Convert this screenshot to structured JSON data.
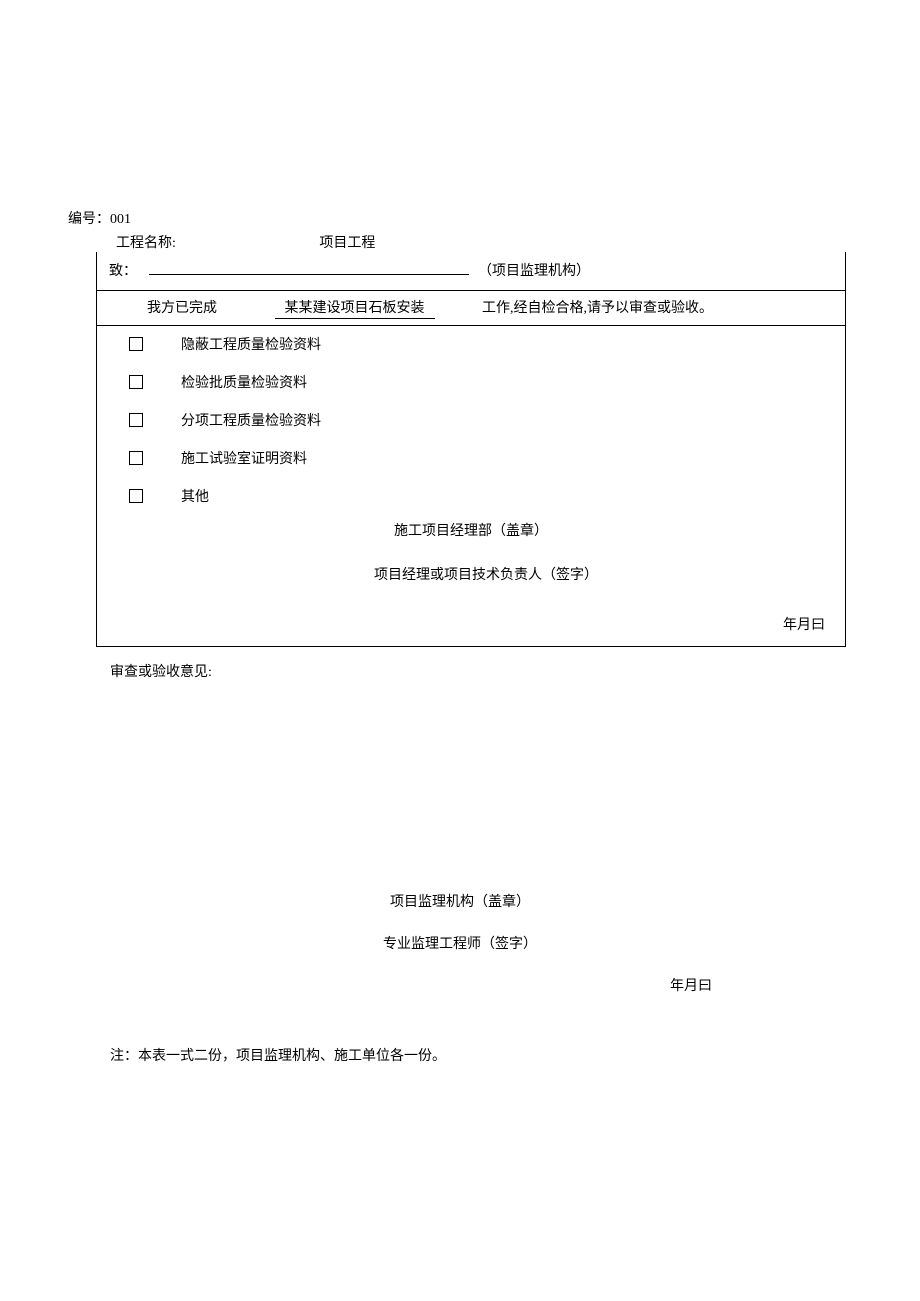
{
  "serial": {
    "label": "编号：",
    "value": "001"
  },
  "project": {
    "label": "工程名称:",
    "value": "项目工程"
  },
  "to": {
    "label": "致：",
    "suffix": "（项目监理机构）"
  },
  "completion": {
    "prefix": "我方已完成",
    "item": "某某建设项目石板安装",
    "suffix": "工作,经自检合格,请予以审查或验收。"
  },
  "checks": {
    "item1": "隐蔽工程质量检验资料",
    "item2": "检验批质量检验资料",
    "item3": "分项工程质量检验资料",
    "item4": "施工试验室证明资料",
    "item5": "其他"
  },
  "seal1": "施工项目经理部（盖章）",
  "sign1": "项目经理或项目技术负责人（签字）",
  "date1": "年月曰",
  "review_label": "审查或验收意见:",
  "seal2": "项目监理机构（盖章）",
  "sign2": "专业监理工程师（签字）",
  "date2": "年月曰",
  "note": "注：本表一式二份，项目监理机构、施工单位各一份。"
}
